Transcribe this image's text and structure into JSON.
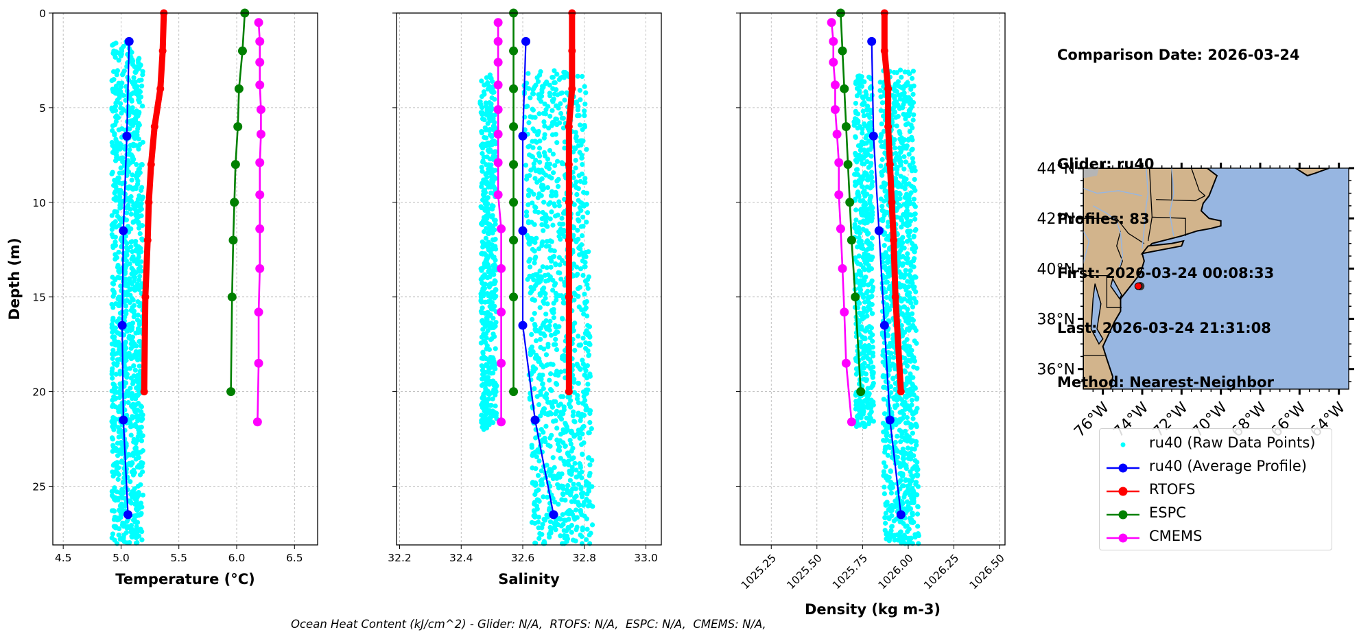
{
  "info_panel": {
    "comparison_date": "Comparison Date: 2026-03-24",
    "glider": "Glider: ru40",
    "profiles": "Profiles: 83",
    "first": "First: 2026-03-24 00:08:33",
    "last": "Last: 2026-03-24 21:31:08",
    "method": "Method: Nearest-Neighbor"
  },
  "footer": "Ocean Heat Content (kJ/cm^2) - Glider: N/A,  RTOFS: N/A,  ESPC: N/A,  CMEMS: N/A,",
  "colors": {
    "raw": "#00ffff",
    "glider": "#0000ff",
    "rtofs": "#ff0000",
    "espc": "#008000",
    "cmems": "#ff00ff",
    "land": "#d2b48c",
    "ocean": "#97b6e1",
    "river": "#97b6e1",
    "grid": "#b0b0b0"
  },
  "legend": {
    "entries": [
      {
        "label": "ru40 (Raw Data Points)",
        "series": "raw",
        "style": "point"
      },
      {
        "label": "ru40 (Average Profile)",
        "series": "glider",
        "style": "line-marker"
      },
      {
        "label": "RTOFS",
        "series": "rtofs",
        "style": "line-marker"
      },
      {
        "label": "ESPC",
        "series": "espc",
        "style": "line-marker"
      },
      {
        "label": "CMEMS",
        "series": "cmems",
        "style": "line-marker"
      }
    ]
  },
  "chart_data": [
    {
      "type": "line",
      "id": "temperature",
      "title": "",
      "xlabel": "Temperature (°C)",
      "ylabel": "Depth (m)",
      "xlim": [
        4.41,
        6.7
      ],
      "ylim": [
        28.1,
        0
      ],
      "xticks": [
        4.5,
        5.0,
        5.5,
        6.0,
        6.5
      ],
      "xtick_labels": [
        "4.5",
        "5.0",
        "5.5",
        "6.0",
        "6.5"
      ],
      "yticks": [
        0,
        5,
        10,
        15,
        20,
        25
      ],
      "ytick_labels": [
        "0",
        "5",
        "10",
        "15",
        "20",
        "25"
      ],
      "grid": true,
      "raw_points": {
        "name": "ru40 (Raw Data Points)",
        "x_range": [
          4.92,
          5.19
        ],
        "depth_range": [
          1.5,
          28.1
        ],
        "center": 5.05
      },
      "series": [
        {
          "name": "ru40 (Average Profile)",
          "key": "glider",
          "depth": [
            1.5,
            6.5,
            11.5,
            16.5,
            21.5,
            26.5
          ],
          "values": [
            5.07,
            5.05,
            5.02,
            5.01,
            5.02,
            5.06
          ]
        },
        {
          "name": "RTOFS",
          "key": "rtofs",
          "depth": [
            0,
            2,
            4,
            6,
            8,
            10,
            12,
            15,
            20
          ],
          "values": [
            5.37,
            5.36,
            5.34,
            5.29,
            5.26,
            5.24,
            5.23,
            5.21,
            5.2
          ]
        },
        {
          "name": "ESPC",
          "key": "espc",
          "depth": [
            0,
            2,
            4,
            6,
            8,
            10,
            12,
            15,
            20
          ],
          "values": [
            6.07,
            6.05,
            6.02,
            6.01,
            5.99,
            5.98,
            5.97,
            5.96,
            5.95
          ]
        },
        {
          "name": "CMEMS",
          "key": "cmems",
          "depth": [
            0.5,
            1.5,
            2.6,
            3.8,
            5.1,
            6.4,
            7.9,
            9.6,
            11.4,
            13.5,
            15.8,
            18.5,
            21.6
          ],
          "values": [
            6.19,
            6.2,
            6.2,
            6.2,
            6.21,
            6.21,
            6.2,
            6.2,
            6.2,
            6.2,
            6.19,
            6.19,
            6.18
          ]
        }
      ]
    },
    {
      "type": "line",
      "id": "salinity",
      "title": "",
      "xlabel": "Salinity",
      "ylabel": "",
      "xlim": [
        32.19,
        33.05
      ],
      "ylim": [
        28.1,
        0
      ],
      "xticks": [
        32.2,
        32.4,
        32.6,
        32.8,
        33.0
      ],
      "xtick_labels": [
        "32.2",
        "32.4",
        "32.6",
        "32.8",
        "33.0"
      ],
      "yticks": [
        0,
        5,
        10,
        15,
        20,
        25
      ],
      "ytick_labels": [],
      "grid": true,
      "raw_points": {
        "name": "ru40 (Raw Data Points)",
        "clusters": [
          {
            "x_range": [
              32.46,
              32.51
            ],
            "depth_range": [
              3.2,
              22.0
            ]
          },
          {
            "x_range": [
              32.6,
              32.8
            ],
            "depth_range": [
              3.0,
              28.1
            ]
          }
        ]
      },
      "series": [
        {
          "name": "ru40 (Average Profile)",
          "key": "glider",
          "depth": [
            1.5,
            6.5,
            11.5,
            16.5,
            21.5,
            26.5
          ],
          "values": [
            32.61,
            32.6,
            32.6,
            32.6,
            32.64,
            32.7
          ]
        },
        {
          "name": "RTOFS",
          "key": "rtofs",
          "depth": [
            0,
            2,
            4,
            6,
            8,
            10,
            12,
            15,
            20
          ],
          "values": [
            32.76,
            32.76,
            32.76,
            32.75,
            32.75,
            32.75,
            32.75,
            32.75,
            32.75
          ]
        },
        {
          "name": "ESPC",
          "key": "espc",
          "depth": [
            0,
            2,
            4,
            6,
            8,
            10,
            12,
            15,
            20
          ],
          "values": [
            32.57,
            32.57,
            32.57,
            32.57,
            32.57,
            32.57,
            32.57,
            32.57,
            32.57
          ]
        },
        {
          "name": "CMEMS",
          "key": "cmems",
          "depth": [
            0.5,
            1.5,
            2.6,
            3.8,
            5.1,
            6.4,
            7.9,
            9.6,
            11.4,
            13.5,
            15.8,
            18.5,
            21.6
          ],
          "values": [
            32.52,
            32.52,
            32.52,
            32.52,
            32.52,
            32.52,
            32.52,
            32.52,
            32.53,
            32.53,
            32.53,
            32.53,
            32.53
          ]
        }
      ]
    },
    {
      "type": "line",
      "id": "density",
      "title": "",
      "xlabel": "Density (kg m-3)",
      "ylabel": "",
      "xlim": [
        1025.08,
        1026.53
      ],
      "ylim": [
        28.1,
        0
      ],
      "xticks": [
        1025.25,
        1025.5,
        1025.75,
        1026.0,
        1026.25,
        1026.5
      ],
      "xtick_labels": [
        "1025.25",
        "1025.50",
        "1025.75",
        "1026.00",
        "1026.25",
        "1026.50"
      ],
      "yticks": [
        0,
        5,
        10,
        15,
        20,
        25
      ],
      "ytick_labels": [],
      "grid": true,
      "raw_points": {
        "name": "ru40 (Raw Data Points)",
        "clusters": [
          {
            "x_range": [
              1025.7,
              1025.8
            ],
            "depth_range": [
              3.2,
              22.0
            ]
          },
          {
            "x_range": [
              1025.84,
              1026.03
            ],
            "depth_range": [
              3.0,
              28.1
            ]
          }
        ]
      },
      "series": [
        {
          "name": "ru40 (Average Profile)",
          "key": "glider",
          "depth": [
            1.5,
            6.5,
            11.5,
            16.5,
            21.5,
            26.5
          ],
          "values": [
            1025.8,
            1025.81,
            1025.84,
            1025.87,
            1025.9,
            1025.96
          ]
        },
        {
          "name": "RTOFS",
          "key": "rtofs",
          "depth": [
            0,
            2,
            4,
            6,
            8,
            10,
            12,
            15,
            20
          ],
          "values": [
            1025.87,
            1025.87,
            1025.89,
            1025.89,
            1025.9,
            1025.91,
            1025.92,
            1025.93,
            1025.96
          ]
        },
        {
          "name": "ESPC",
          "key": "espc",
          "depth": [
            0,
            2,
            4,
            6,
            8,
            10,
            12,
            15,
            20
          ],
          "values": [
            1025.63,
            1025.64,
            1025.65,
            1025.66,
            1025.67,
            1025.68,
            1025.69,
            1025.71,
            1025.74
          ]
        },
        {
          "name": "CMEMS",
          "key": "cmems",
          "depth": [
            0.5,
            1.5,
            2.6,
            3.8,
            5.1,
            6.4,
            7.9,
            9.6,
            11.4,
            13.5,
            15.8,
            18.5,
            21.6
          ],
          "values": [
            1025.58,
            1025.59,
            1025.59,
            1025.6,
            1025.6,
            1025.61,
            1025.62,
            1025.62,
            1025.63,
            1025.64,
            1025.65,
            1025.66,
            1025.69
          ]
        }
      ]
    },
    {
      "type": "map",
      "id": "location-map",
      "lon_range": [
        -77,
        -63.5
      ],
      "lat_range": [
        35.2,
        44
      ],
      "lat_ticks": [
        36,
        38,
        40,
        42,
        44
      ],
      "lat_tick_labels": [
        "36°N",
        "38°N",
        "40°N",
        "42°N",
        "44°N"
      ],
      "lon_ticks": [
        -76,
        -74,
        -72,
        -70,
        -68,
        -66,
        -64
      ],
      "lon_tick_labels": [
        "76°W",
        "74°W",
        "72°W",
        "70°W",
        "68°W",
        "66°W",
        "64°W"
      ],
      "glider_position": {
        "lon": -74.2,
        "lat": 39.3
      }
    }
  ]
}
